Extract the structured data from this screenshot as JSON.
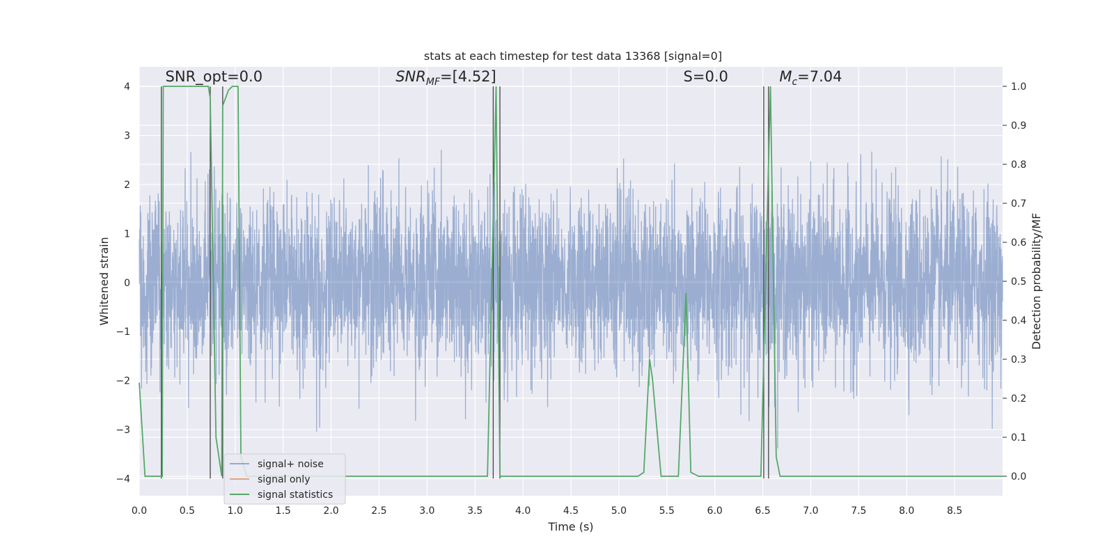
{
  "chart_data": {
    "type": "line",
    "title": "stats at each timestep for test data 13368 [signal=0]",
    "xlabel": "Time (s)",
    "ylabel_left": "Whitened strain",
    "ylabel_right": "Detection probability/MF",
    "xlim": [
      0,
      9.0
    ],
    "ylim_left": [
      -4.35,
      4.4
    ],
    "ylim_right": [
      -0.05,
      1.05
    ],
    "x_ticks": [
      "0.0",
      "0.5",
      "1.0",
      "1.5",
      "2.0",
      "2.5",
      "3.0",
      "3.5",
      "4.0",
      "4.5",
      "5.0",
      "5.5",
      "6.0",
      "6.5",
      "7.0",
      "7.5",
      "8.0",
      "8.5"
    ],
    "x_tick_values": [
      0,
      0.5,
      1,
      1.5,
      2,
      2.5,
      3,
      3.5,
      4,
      4.5,
      5,
      5.5,
      6,
      6.5,
      7,
      7.5,
      8,
      8.5
    ],
    "y_ticks_left": [
      "−4",
      "−3",
      "−2",
      "−1",
      "0",
      "1",
      "2",
      "3",
      "4"
    ],
    "y_tick_values_left": [
      -4,
      -3,
      -2,
      -1,
      0,
      1,
      2,
      3,
      4
    ],
    "y_ticks_right": [
      "0.0",
      "0.1",
      "0.2",
      "0.3",
      "0.4",
      "0.5",
      "0.6",
      "0.7",
      "0.8",
      "0.9",
      "1.0"
    ],
    "y_tick_values_right": [
      0,
      0.1,
      0.2,
      0.3,
      0.4,
      0.5,
      0.6,
      0.7,
      0.8,
      0.9,
      1.0
    ],
    "grid": true,
    "legend_placement": "lower-left",
    "legend": [
      "signal+ noise",
      "signal only",
      "signal statistics"
    ],
    "colors": {
      "noise": "#4c72b0",
      "signal": "#dd8452",
      "stats": "#55a868",
      "vline": "#444444",
      "plot_bg": "#eaeaf2",
      "grid": "#ffffff"
    },
    "annotations": [
      {
        "text": "SNR_opt=0.0",
        "x": 0.2,
        "y": 4.1
      },
      {
        "text": "SNR_MF=[4.52]",
        "x": 2.6,
        "y": 4.1
      },
      {
        "text": "S=0.0",
        "x": 5.6,
        "y": 4.1
      },
      {
        "text": "M_c=7.04",
        "x": 6.6,
        "y": 4.1
      }
    ],
    "series": [
      {
        "name": "signal+ noise",
        "axis": "left",
        "points": 4500,
        "random_seed": 13368,
        "std": 0.9
      },
      {
        "name": "signal only",
        "axis": "left",
        "values": []
      },
      {
        "name": "signal statistics",
        "axis": "right",
        "x": [
          0.0,
          0.06,
          0.24,
          0.25,
          0.3,
          0.31,
          0.72,
          0.74,
          0.8,
          0.86,
          0.87,
          0.93,
          0.97,
          1.03,
          1.06,
          1.12,
          1.2,
          3.63,
          3.72,
          3.76,
          3.82,
          5.2,
          5.26,
          5.32,
          5.35,
          5.44,
          5.62,
          5.7,
          5.75,
          5.83,
          6.48,
          6.58,
          6.64,
          6.68,
          9.0
        ],
        "y": [
          0.24,
          0.0,
          0.0,
          1.0,
          1.0,
          1.0,
          1.0,
          0.97,
          0.1,
          0.0,
          0.95,
          0.99,
          1.0,
          1.0,
          0.05,
          0.0,
          0.0,
          0.0,
          1.0,
          0.0,
          0.0,
          0.0,
          0.01,
          0.3,
          0.25,
          0.0,
          0.0,
          0.47,
          0.01,
          0.0,
          0.0,
          1.0,
          0.05,
          0.0,
          0.0
        ]
      }
    ],
    "vlines_left": [
      {
        "x": 0.23,
        "y0": -4,
        "y1": 4
      },
      {
        "x": 0.74,
        "y0": -4,
        "y1": 4
      },
      {
        "x": 0.87,
        "y0": -4,
        "y1": 4
      },
      {
        "x": 3.69,
        "y0": -4,
        "y1": 4
      },
      {
        "x": 3.76,
        "y0": -4,
        "y1": 4
      },
      {
        "x": 6.51,
        "y0": -4,
        "y1": 4
      },
      {
        "x": 6.56,
        "y0": -4,
        "y1": 4
      }
    ]
  }
}
